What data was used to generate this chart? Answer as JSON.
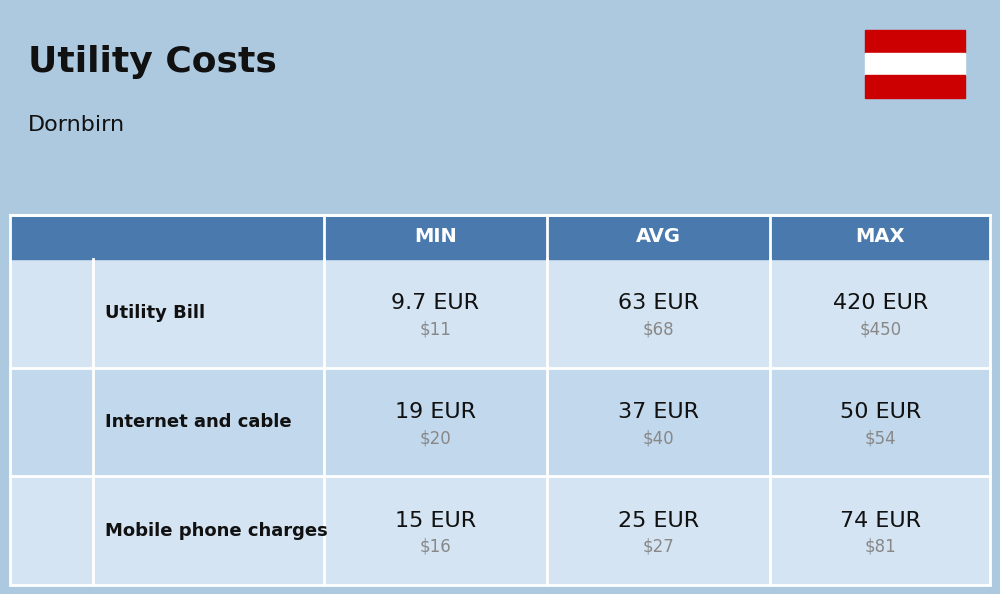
{
  "title": "Utility Costs",
  "subtitle": "Dornbirn",
  "background_color": "#adc9e0",
  "header_color": "#4a7aad",
  "header_text_color": "#ffffff",
  "row_color_odd": "#d4e4f2",
  "row_color_even": "#c2d8ec",
  "table_border_color": "#ffffff",
  "categories": [
    "Utility Bill",
    "Internet and cable",
    "Mobile phone charges"
  ],
  "min_eur": [
    "9.7 EUR",
    "19 EUR",
    "15 EUR"
  ],
  "min_usd": [
    "$11",
    "$20",
    "$16"
  ],
  "avg_eur": [
    "63 EUR",
    "37 EUR",
    "25 EUR"
  ],
  "avg_usd": [
    "$68",
    "$40",
    "$27"
  ],
  "max_eur": [
    "420 EUR",
    "50 EUR",
    "74 EUR"
  ],
  "max_usd": [
    "$450",
    "$54",
    "$81"
  ],
  "col_headers": [
    "MIN",
    "AVG",
    "MAX"
  ],
  "flag_red": "#cc0000",
  "flag_white": "#ffffff",
  "text_color_main": "#111111",
  "text_color_usd": "#888888",
  "title_fontsize": 26,
  "subtitle_fontsize": 16,
  "category_fontsize": 13,
  "value_fontsize": 16,
  "usd_fontsize": 12,
  "header_fontsize": 14,
  "fig_width": 10.0,
  "fig_height": 5.94,
  "dpi": 100
}
